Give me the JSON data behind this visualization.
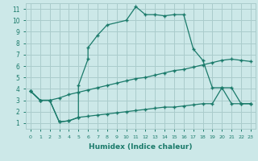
{
  "title": "",
  "xlabel": "Humidex (Indice chaleur)",
  "bg_color": "#cce8e8",
  "grid_color": "#aacccc",
  "line_color": "#1a7a6a",
  "xlim": [
    -0.5,
    23.5
  ],
  "ylim": [
    0.5,
    11.5
  ],
  "xticks": [
    0,
    1,
    2,
    3,
    4,
    5,
    6,
    7,
    8,
    9,
    10,
    11,
    12,
    13,
    14,
    15,
    16,
    17,
    18,
    19,
    20,
    21,
    22,
    23
  ],
  "yticks": [
    1,
    2,
    3,
    4,
    5,
    6,
    7,
    8,
    9,
    10,
    11
  ],
  "line1_x": [
    0,
    1,
    2,
    3,
    4,
    5,
    5,
    6,
    6,
    7,
    8,
    10,
    11,
    12,
    13,
    14,
    15,
    16,
    17,
    18,
    19,
    20,
    21,
    22,
    23
  ],
  "line1_y": [
    3.8,
    3.0,
    3.0,
    1.1,
    1.2,
    1.5,
    4.3,
    6.6,
    7.6,
    8.7,
    9.6,
    10.0,
    11.2,
    10.5,
    10.5,
    10.4,
    10.5,
    10.5,
    7.5,
    6.5,
    4.1,
    4.1,
    2.7,
    2.7,
    2.7
  ],
  "line2_x": [
    0,
    1,
    2,
    3,
    4,
    5,
    6,
    7,
    8,
    9,
    10,
    11,
    12,
    13,
    14,
    15,
    16,
    17,
    18,
    19,
    20,
    21,
    22,
    23
  ],
  "line2_y": [
    3.8,
    3.0,
    3.0,
    3.2,
    3.5,
    3.7,
    3.9,
    4.1,
    4.3,
    4.5,
    4.7,
    4.9,
    5.0,
    5.2,
    5.4,
    5.6,
    5.7,
    5.9,
    6.1,
    6.3,
    6.5,
    6.6,
    6.5,
    6.4
  ],
  "line3_x": [
    0,
    1,
    2,
    3,
    4,
    5,
    6,
    7,
    8,
    9,
    10,
    11,
    12,
    13,
    14,
    15,
    16,
    17,
    18,
    19,
    20,
    21,
    22,
    23
  ],
  "line3_y": [
    3.8,
    3.0,
    3.0,
    1.1,
    1.2,
    1.5,
    1.6,
    1.7,
    1.8,
    1.9,
    2.0,
    2.1,
    2.2,
    2.3,
    2.4,
    2.4,
    2.5,
    2.6,
    2.7,
    2.7,
    4.1,
    4.1,
    2.7,
    2.7
  ]
}
